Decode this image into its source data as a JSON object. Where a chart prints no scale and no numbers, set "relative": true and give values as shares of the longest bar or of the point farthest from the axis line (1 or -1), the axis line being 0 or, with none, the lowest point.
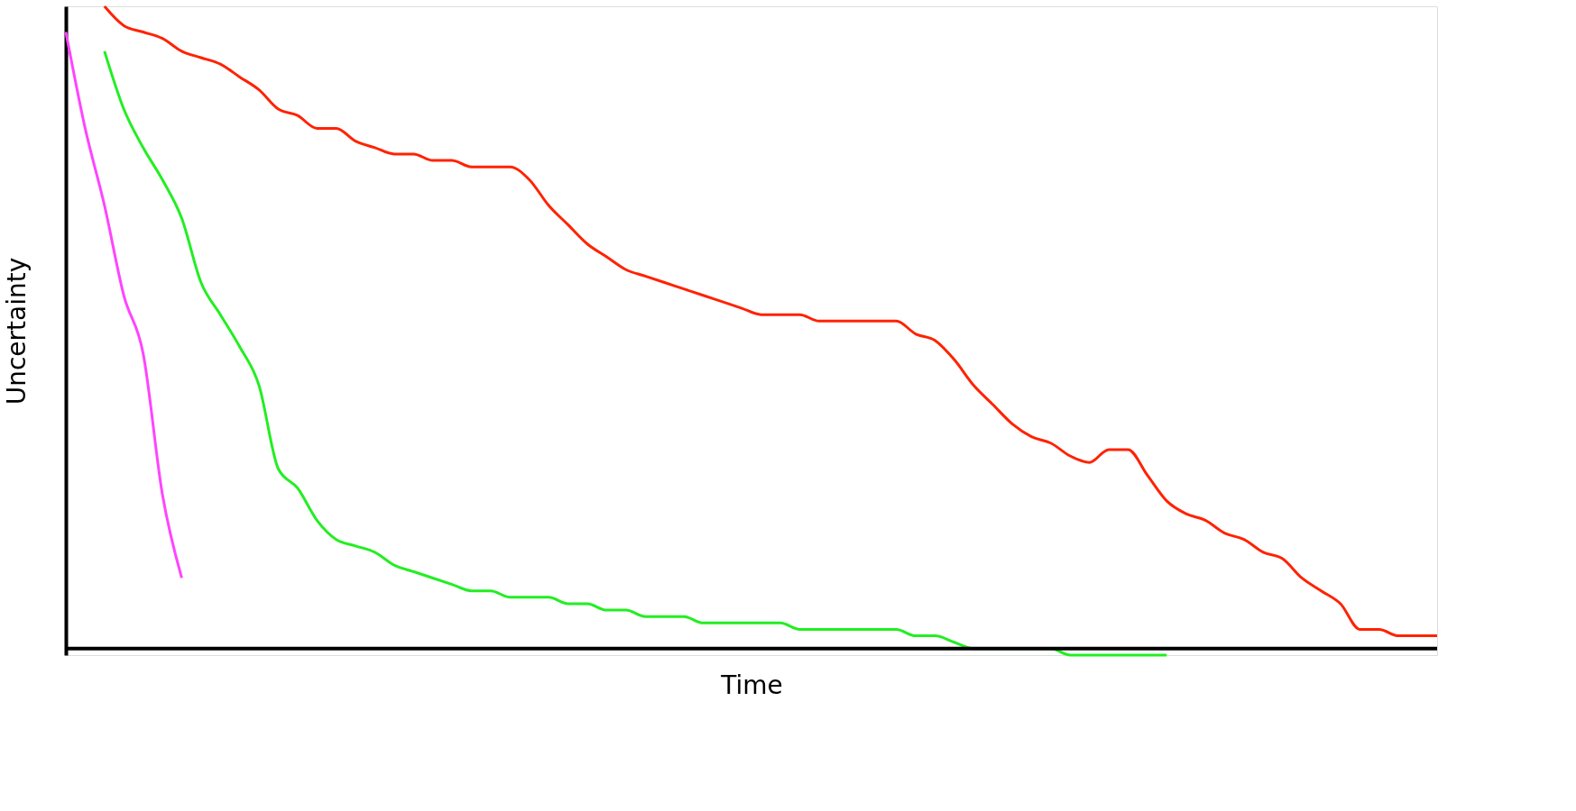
{
  "chart_data": {
    "type": "line",
    "relative": true,
    "xlabel": "Time",
    "ylabel": "Uncertainty",
    "legend": false,
    "tick_labels": false,
    "line_style": "solid",
    "categories": [
      null,
      null,
      null,
      null,
      null,
      null,
      null,
      null,
      null,
      null,
      null,
      null,
      null,
      null,
      null,
      null,
      null,
      null,
      null,
      null,
      null,
      null,
      null,
      null,
      null,
      null,
      null,
      null,
      null,
      null,
      null,
      null,
      null,
      null,
      null,
      null,
      null,
      null,
      null,
      null,
      null,
      null,
      null,
      null,
      null,
      null,
      null,
      null,
      null,
      null,
      null,
      null,
      null,
      null,
      null,
      null,
      null,
      null,
      null,
      null,
      null,
      null,
      null,
      null,
      null,
      null,
      null,
      null,
      null,
      null,
      null,
      null
    ],
    "series": [
      {
        "color": "#ff44ff",
        "values": [
          0.96,
          0.81,
          0.69,
          0.55,
          0.46,
          0.24,
          0.11,
          null,
          null,
          null,
          null,
          null,
          null,
          null,
          null,
          null,
          null,
          null,
          null,
          null,
          null,
          null,
          null,
          null,
          null,
          null,
          null,
          null,
          null,
          null,
          null,
          null,
          null,
          null,
          null,
          null,
          null,
          null,
          null,
          null,
          null,
          null,
          null,
          null,
          null,
          null,
          null,
          null,
          null,
          null,
          null,
          null,
          null,
          null,
          null,
          null,
          null,
          null,
          null,
          null,
          null,
          null,
          null,
          null,
          null,
          null,
          null,
          null,
          null,
          null,
          null,
          null
        ]
      },
      {
        "color": "#22ee22",
        "values": [
          null,
          null,
          0.93,
          0.84,
          0.78,
          0.73,
          0.67,
          0.57,
          0.52,
          0.47,
          0.41,
          0.28,
          0.25,
          0.2,
          0.17,
          0.16,
          0.15,
          0.13,
          0.12,
          0.11,
          0.1,
          0.09,
          0.09,
          0.08,
          0.08,
          0.08,
          0.07,
          0.07,
          0.06,
          0.06,
          0.05,
          0.05,
          0.05,
          0.04,
          0.04,
          0.04,
          0.04,
          0.04,
          0.03,
          0.03,
          0.03,
          0.03,
          0.03,
          0.03,
          0.02,
          0.02,
          0.01,
          0.0,
          0.0,
          0.0,
          0.0,
          0.0,
          -0.01,
          -0.01,
          -0.01,
          -0.01,
          -0.01,
          -0.01,
          null,
          null,
          null,
          null,
          null,
          null,
          null,
          null,
          null,
          null,
          null,
          null,
          null,
          null
        ]
      },
      {
        "color": "#ff2200",
        "values": [
          null,
          null,
          1,
          0.97,
          0.96,
          0.95,
          0.93,
          0.92,
          0.91,
          0.89,
          0.87,
          0.84,
          0.83,
          0.81,
          0.81,
          0.79,
          0.78,
          0.77,
          0.77,
          0.76,
          0.76,
          0.75,
          0.75,
          0.75,
          0.73,
          0.69,
          0.66,
          0.63,
          0.61,
          0.59,
          0.58,
          0.57,
          0.56,
          0.55,
          0.54,
          0.53,
          0.52,
          0.52,
          0.52,
          0.51,
          0.51,
          0.51,
          0.51,
          0.51,
          0.49,
          0.48,
          0.45,
          0.41,
          0.38,
          0.35,
          0.33,
          0.32,
          0.3,
          0.29,
          0.31,
          0.31,
          0.27,
          0.23,
          0.21,
          0.2,
          0.18,
          0.17,
          0.15,
          0.14,
          0.11,
          0.09,
          0.07,
          0.03,
          0.03,
          0.02,
          0.02,
          0.02
        ]
      }
    ]
  }
}
